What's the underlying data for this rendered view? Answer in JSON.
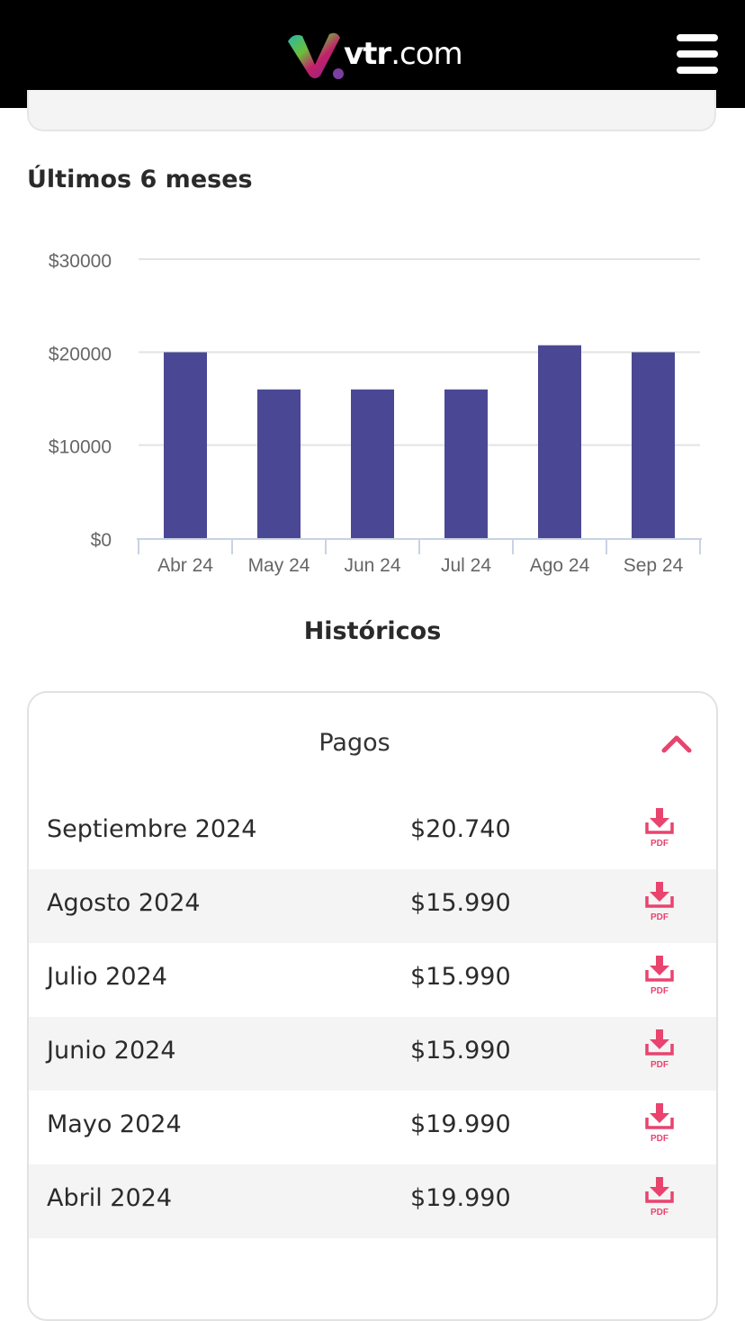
{
  "header": {
    "logo_text_bold": "vtr",
    "logo_text_light": ".com",
    "menu_icon": "hamburger-icon"
  },
  "chart_section": {
    "title": "Últimos 6 meses"
  },
  "chart_data": {
    "type": "bar",
    "categories": [
      "Abr 24",
      "May 24",
      "Jun 24",
      "Jul 24",
      "Ago 24",
      "Sep 24"
    ],
    "values": [
      19990,
      15990,
      15990,
      15990,
      20740,
      19990
    ],
    "ylim": [
      0,
      30000
    ],
    "yticks": [
      0,
      10000,
      20000,
      30000
    ],
    "ytick_labels": [
      "$0",
      "$10000",
      "$20000",
      "$30000"
    ],
    "grid": true,
    "bar_color": "#4a4894"
  },
  "historicos": {
    "title": "Históricos",
    "panel_label": "Pagos",
    "toggle_icon": "chevron-up-icon",
    "accent": "#e8446e",
    "rows": [
      {
        "month": "Septiembre 2024",
        "amount": "$20.740",
        "pdf_label": "PDF"
      },
      {
        "month": "Agosto 2024",
        "amount": "$15.990",
        "pdf_label": "PDF"
      },
      {
        "month": "Julio 2024",
        "amount": "$15.990",
        "pdf_label": "PDF"
      },
      {
        "month": "Junio 2024",
        "amount": "$15.990",
        "pdf_label": "PDF"
      },
      {
        "month": "Mayo 2024",
        "amount": "$19.990",
        "pdf_label": "PDF"
      },
      {
        "month": "Abril 2024",
        "amount": "$19.990",
        "pdf_label": "PDF"
      }
    ]
  }
}
